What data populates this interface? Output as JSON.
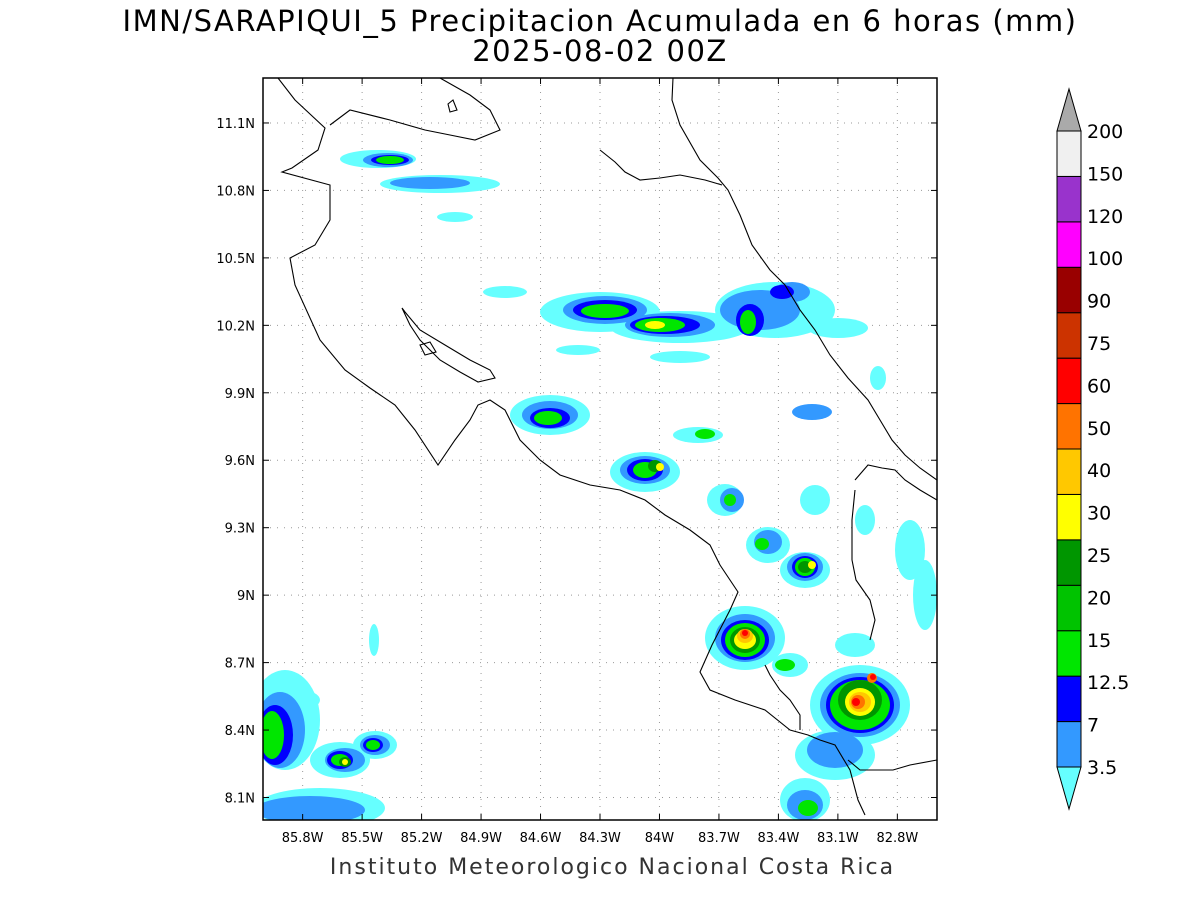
{
  "title": {
    "line1": "IMN/SARAPIQUI_5 Precipitacion Acumulada en 6 horas (mm)",
    "line2": "2025-08-02 00Z"
  },
  "credit": "Instituto Meteorologico Nacional Costa Rica",
  "map": {
    "lon_range": [
      -86.0,
      -82.6
    ],
    "lat_range": [
      8.0,
      11.3
    ],
    "lon_ticks": [
      "85.8W",
      "85.5W",
      "85.2W",
      "84.9W",
      "84.6W",
      "84.3W",
      "84W",
      "83.7W",
      "83.4W",
      "83.1W",
      "82.8W"
    ],
    "lat_ticks": [
      "11.1N",
      "10.8N",
      "10.5N",
      "10.2N",
      "9.9N",
      "9.6N",
      "9.3N",
      "9N",
      "8.7N",
      "8.4N",
      "8.1N"
    ],
    "grid": "dotted"
  },
  "colorbar": {
    "labels": [
      "3.5",
      "7",
      "12.5",
      "15",
      "20",
      "25",
      "30",
      "40",
      "50",
      "60",
      "75",
      "90",
      "100",
      "120",
      "150",
      "200"
    ],
    "colors": [
      "#66ffff",
      "#3399ff",
      "#0000ff",
      "#00e600",
      "#00c300",
      "#009600",
      "#ffff00",
      "#ffc800",
      "#ff7300",
      "#ff0000",
      "#cc3300",
      "#990000",
      "#ff00ff",
      "#9933cc",
      "#f0f0f0",
      "#aaaaaa"
    ]
  }
}
